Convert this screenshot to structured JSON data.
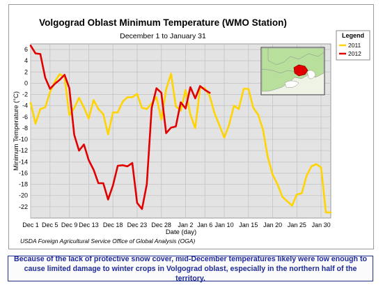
{
  "colors": {
    "series_2011": "#ffd400",
    "series_2012": "#e00000",
    "plot_background": "#e3e3e3",
    "caption_text": "#1f2a9c"
  },
  "chart_data": {
    "type": "line",
    "title": "Volgograd Oblast Minimum Temperature (WMO Station)",
    "subtitle": "December 1 to January 31",
    "xlabel": "Date (day)",
    "ylabel": "Minimum Temperature (°C)",
    "source": "USDA Foreign Agricultural Service Office of Global Analysis (OGA)",
    "ylim": [
      -24,
      7
    ],
    "xlim": [
      1,
      63
    ],
    "yticks": [
      6,
      4,
      2,
      0,
      -2,
      -4,
      -6,
      -8,
      -10,
      -12,
      -14,
      -16,
      -18,
      -20,
      -22
    ],
    "xticks": [
      {
        "day": 1,
        "label": "Dec 1"
      },
      {
        "day": 5,
        "label": "Dec 5"
      },
      {
        "day": 9,
        "label": "Dec 9"
      },
      {
        "day": 13,
        "label": "Dec 13"
      },
      {
        "day": 18,
        "label": "Dec 18"
      },
      {
        "day": 23,
        "label": "Dec 23"
      },
      {
        "day": 28,
        "label": "Dec 28"
      },
      {
        "day": 33,
        "label": "Jan 2"
      },
      {
        "day": 37,
        "label": "Jan 6"
      },
      {
        "day": 41,
        "label": "Jan 10"
      },
      {
        "day": 46,
        "label": "Jan 15"
      },
      {
        "day": 51,
        "label": "Jan 20"
      },
      {
        "day": 56,
        "label": "Jan 25"
      },
      {
        "day": 61,
        "label": "Jan 30"
      }
    ],
    "grid": true,
    "legend": {
      "title": "Legend",
      "position": "top-right"
    },
    "series": [
      {
        "name": "2011",
        "color": "#ffd400",
        "x": [
          1,
          2,
          3,
          4,
          5,
          6,
          7,
          8,
          9,
          10,
          11,
          12,
          13,
          14,
          15,
          16,
          17,
          18,
          19,
          20,
          21,
          22,
          23,
          24,
          25,
          26,
          27,
          28,
          29,
          30,
          31,
          32,
          33,
          34,
          35,
          36,
          37,
          38,
          39,
          40,
          41,
          42,
          43,
          44,
          45,
          46,
          47,
          48,
          49,
          50,
          51,
          52,
          53,
          54,
          55,
          56,
          57,
          58,
          59,
          60,
          61,
          62,
          63
        ],
        "values": [
          -3.5,
          -7.2,
          -4.6,
          -4.3,
          -1.6,
          0.3,
          1.6,
          1.1,
          -5.7,
          -4.4,
          -2.6,
          -4.3,
          -6.3,
          -3,
          -4.6,
          -5.5,
          -9.1,
          -5.2,
          -5.2,
          -3.3,
          -2.5,
          -2.5,
          -1.9,
          -4.4,
          -4.6,
          -3.6,
          -2.5,
          -6.5,
          -1.1,
          1.7,
          -4.1,
          -4.9,
          -1.2,
          -5.6,
          -8.0,
          -0.8,
          -0.9,
          -2.3,
          -5.4,
          -7.5,
          -9.7,
          -7.4,
          -4.0,
          -4.6,
          -1.0,
          -1.0,
          -4.4,
          -5.6,
          -8.3,
          -13.2,
          -16.3,
          -18.0,
          -20.2,
          -21.0,
          -21.8,
          -19.8,
          -19.6,
          -16.5,
          -14.8,
          -14.4,
          -15.0,
          -23.0,
          -23.0
        ]
      },
      {
        "name": "2012",
        "color": "#e00000",
        "x": [
          1,
          2,
          3,
          4,
          5,
          6,
          7,
          8,
          9,
          10,
          11,
          12,
          13,
          14,
          15,
          16,
          17,
          18,
          19,
          20,
          21,
          22,
          23,
          24,
          25,
          26,
          27,
          28,
          29,
          30,
          31,
          32,
          33,
          34,
          35,
          36,
          37,
          38
        ],
        "values": [
          6.7,
          5.3,
          5.2,
          1.0,
          -1.0,
          -0.1,
          0.6,
          1.5,
          -0.9,
          -9.2,
          -12.0,
          -10.9,
          -13.7,
          -15.4,
          -17.8,
          -17.8,
          -20.7,
          -18.2,
          -14.7,
          -14.6,
          -14.8,
          -14.2,
          -21.3,
          -22.4,
          -18.0,
          -4.4,
          -0.9,
          -1.7,
          -8.9,
          -7.9,
          -7.7,
          -3.4,
          -4.5,
          -0.7,
          -2.7,
          -0.5,
          -1.2,
          -1.7
        ]
      }
    ]
  },
  "inset_map": {
    "description_icon": "region-map-icon"
  },
  "caption": {
    "text": "Because of the lack of protective snow cover, mid-December temperatures likely were low enough to cause limited damage to winter crops in Volgograd oblast, especially in the northern half of the territory."
  }
}
